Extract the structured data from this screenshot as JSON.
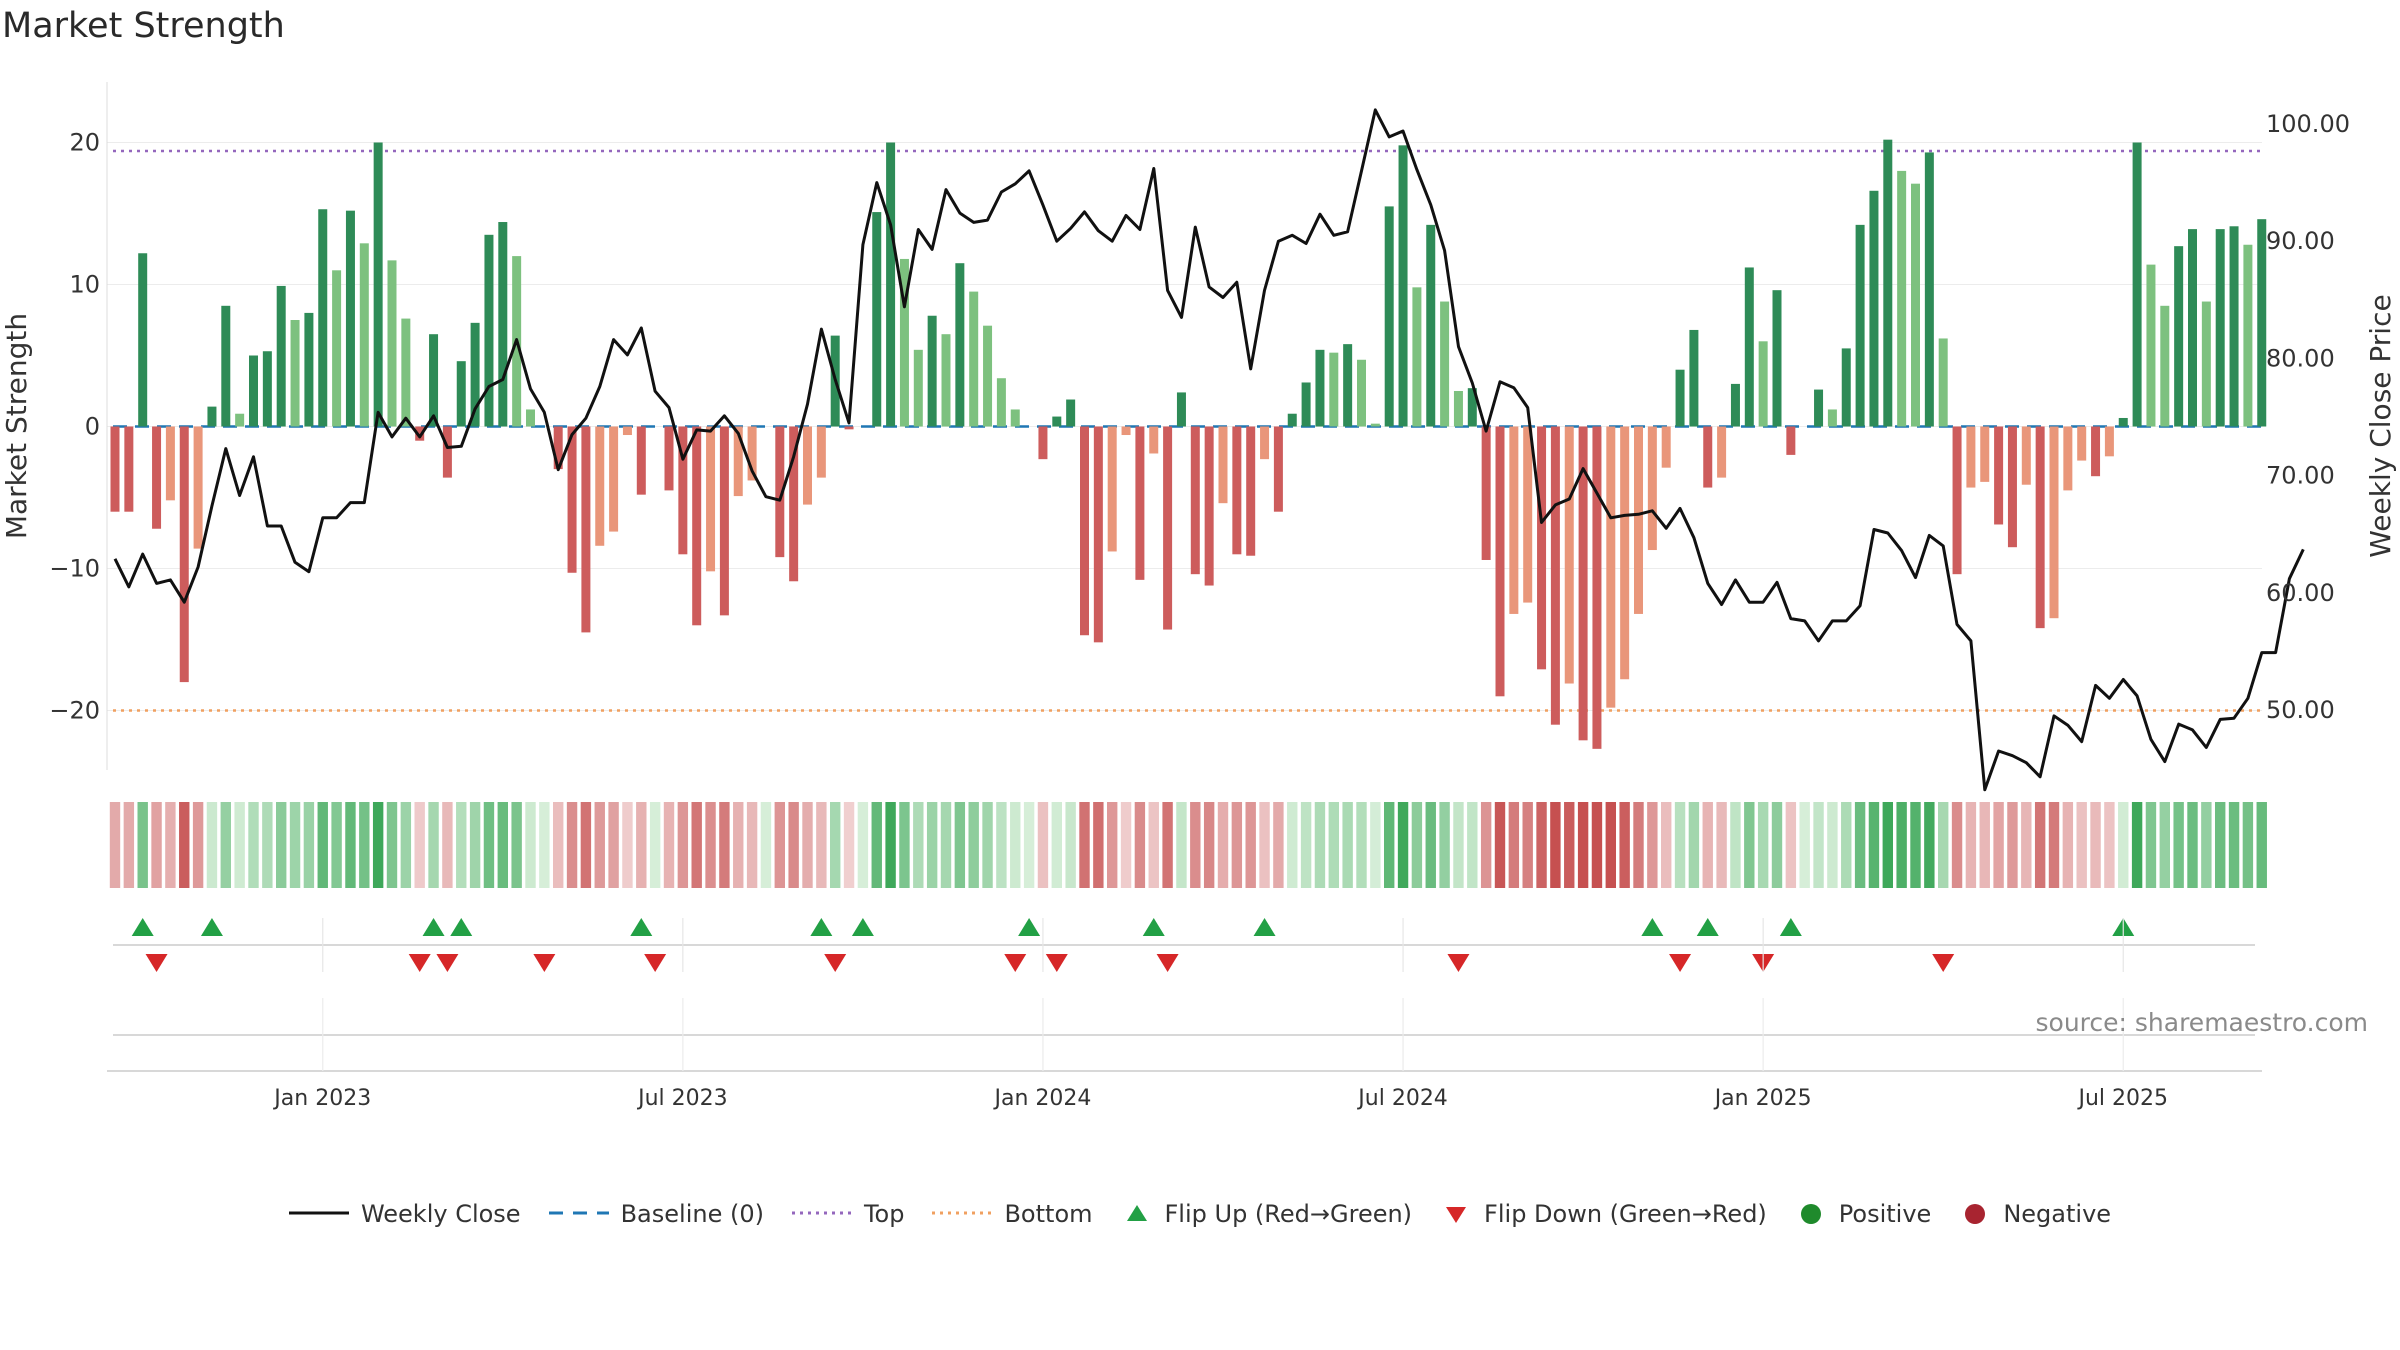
{
  "title": "Market Strength",
  "source": "source: sharemaestro.com",
  "colors": {
    "pos_strong": "#2e8b57",
    "pos_light": "#7dc17f",
    "neg_strong": "#cd5c5c",
    "neg_light": "#e9967a",
    "price": "#111111",
    "top": "#9467bd",
    "bottom": "#f0a060",
    "baseline": "#1f77b4",
    "flip_up": "#22a045",
    "flip_down": "#d62728"
  },
  "chart_data": {
    "type": "bar",
    "title": "Market Strength",
    "ylabel": "Market Strength",
    "y2label": "Weekly Close Price",
    "ylim": [
      -24.5,
      24.5
    ],
    "y2lim": [
      40.4,
      105.0
    ],
    "yticks": [
      20,
      10,
      0,
      -10,
      -20
    ],
    "ytick_labels": [
      "20",
      "10",
      "0",
      "−10",
      "−20"
    ],
    "y2ticks": [
      100,
      90,
      80,
      70,
      60,
      50
    ],
    "y2tick_labels": [
      "100.00",
      "90.00",
      "80.00",
      "70.00",
      "60.00",
      "50.00"
    ],
    "top_line": 19.4,
    "bottom_line": -20.0,
    "baseline": 0,
    "x_start": "2022-09-26",
    "x_step_days": 7,
    "xticks": [
      {
        "label": "Jan 2023",
        "index": 15
      },
      {
        "label": "Jul 2023",
        "index": 41
      },
      {
        "label": "Jan 2024",
        "index": 67
      },
      {
        "label": "Jul 2024",
        "index": 93
      },
      {
        "label": "Jan 2025",
        "index": 119
      },
      {
        "label": "Jul 2025",
        "index": 145
      }
    ],
    "strength": [
      -6,
      -6,
      12.2,
      -7.2,
      -5.2,
      -18,
      -8.6,
      1.4,
      8.5,
      0.9,
      5,
      5.3,
      9.9,
      7.5,
      8,
      15.3,
      11,
      15.2,
      12.9,
      20,
      11.7,
      7.6,
      -1,
      6.5,
      -3.6,
      4.6,
      7.3,
      13.5,
      14.4,
      12,
      1.2,
      0,
      -3,
      -10.3,
      -14.5,
      -8.4,
      -7.4,
      -0.6,
      -4.8,
      0,
      -4.5,
      -9,
      -14,
      -10.2,
      -13.3,
      -4.9,
      -3.8,
      0,
      -9.2,
      -10.9,
      -5.5,
      -3.6,
      6.4,
      -0.2,
      0,
      15.1,
      20,
      11.8,
      5.4,
      7.8,
      6.5,
      11.5,
      9.5,
      7.1,
      3.4,
      1.2,
      0,
      -2.3,
      0.7,
      1.9,
      -14.7,
      -15.2,
      -8.8,
      -0.6,
      -10.8,
      -1.9,
      -14.3,
      2.4,
      -10.4,
      -11.2,
      -5.4,
      -9,
      -9.1,
      -2.3,
      -6,
      0.9,
      3.1,
      5.4,
      5.2,
      5.8,
      4.7,
      0.2,
      15.5,
      19.8,
      9.8,
      14.2,
      8.8,
      2.5,
      2.7,
      -9.4,
      -19,
      -13.2,
      -12.4,
      -17.1,
      -21,
      -18.1,
      -22.1,
      -22.7,
      -19.8,
      -17.8,
      -13.2,
      -8.7,
      -2.9,
      4,
      6.8,
      -4.3,
      -3.6,
      3,
      11.2,
      6,
      9.6,
      -2,
      0,
      2.6,
      1.2,
      5.5,
      14.2,
      16.6,
      20.2,
      18,
      17.1,
      19.3,
      6.2,
      -10.4,
      -4.3,
      -3.9,
      -6.9,
      -8.5,
      -4.1,
      -14.2,
      -13.5,
      -4.5,
      -2.4,
      -3.5,
      -2.1,
      0.6,
      20,
      11.4,
      8.5,
      12.7,
      13.9,
      8.8,
      13.9,
      14.1,
      12.8,
      14.6
    ],
    "price": [
      62.9,
      60.5,
      63.3,
      60.8,
      61.1,
      59.2,
      62.2,
      67.4,
      72.3,
      68.3,
      71.6,
      65.7,
      65.7,
      62.6,
      61.8,
      66.4,
      66.4,
      67.7,
      67.7,
      75.4,
      73.3,
      74.9,
      73.3,
      75.1,
      72.4,
      72.5,
      75.7,
      77.6,
      78.2,
      81.6,
      77.4,
      75.4,
      70.5,
      73.5,
      74.9,
      77.6,
      81.6,
      80.3,
      82.6,
      77.2,
      75.8,
      71.4,
      73.9,
      73.8,
      75.1,
      73.6,
      70.4,
      68.2,
      67.9,
      71.6,
      76.1,
      82.5,
      78.2,
      74.5,
      89.7,
      95.0,
      91.4,
      84.4,
      91.0,
      89.3,
      94.4,
      92.4,
      91.6,
      91.8,
      94.2,
      94.9,
      96.0,
      93.1,
      90.0,
      91.1,
      92.5,
      90.9,
      90.0,
      92.2,
      91.0,
      96.2,
      85.8,
      83.5,
      91.2,
      86.1,
      85.2,
      86.5,
      79.1,
      85.8,
      90.0,
      90.5,
      89.8,
      92.3,
      90.5,
      90.8,
      96.0,
      101.2,
      98.9,
      99.4,
      96.1,
      93.1,
      89.2,
      81.0,
      77.9,
      73.8,
      78.0,
      77.5,
      75.8,
      66.0,
      67.5,
      68.0,
      70.6,
      68.5,
      66.4,
      66.6,
      66.7,
      67.0,
      65.5,
      67.2,
      64.7,
      60.8,
      59.0,
      61.1,
      59.2,
      59.2,
      60.9,
      57.8,
      57.6,
      55.9,
      57.6,
      57.6,
      58.9,
      65.4,
      65.1,
      63.6,
      61.3,
      64.9,
      64.0,
      57.3,
      55.9,
      43.2,
      46.5,
      46.1,
      45.5,
      44.3,
      49.5,
      48.7,
      47.3,
      52.1,
      51.0,
      52.6,
      51.2,
      47.5,
      45.6,
      48.8,
      48.3,
      46.8,
      49.2,
      49.3,
      51.0,
      54.9,
      54.9,
      61.2,
      63.7
    ],
    "flip_up": [
      2,
      7,
      23,
      25,
      38,
      51,
      54,
      66,
      75,
      83,
      111,
      115,
      121,
      145
    ],
    "flip_down": [
      3,
      22,
      24,
      31,
      39,
      52,
      65,
      68,
      76,
      97,
      113,
      119,
      132
    ],
    "legend": [
      {
        "kind": "line",
        "label": "Weekly Close"
      },
      {
        "kind": "dash",
        "label": "Baseline (0)"
      },
      {
        "kind": "dot-purple",
        "label": "Top"
      },
      {
        "kind": "dot-orange",
        "label": "Bottom"
      },
      {
        "kind": "tri-up",
        "label": "Flip Up (Red→Green)"
      },
      {
        "kind": "tri-down",
        "label": "Flip Down (Green→Red)"
      },
      {
        "kind": "circ-green",
        "label": "Positive"
      },
      {
        "kind": "circ-red",
        "label": "Negative"
      }
    ]
  }
}
